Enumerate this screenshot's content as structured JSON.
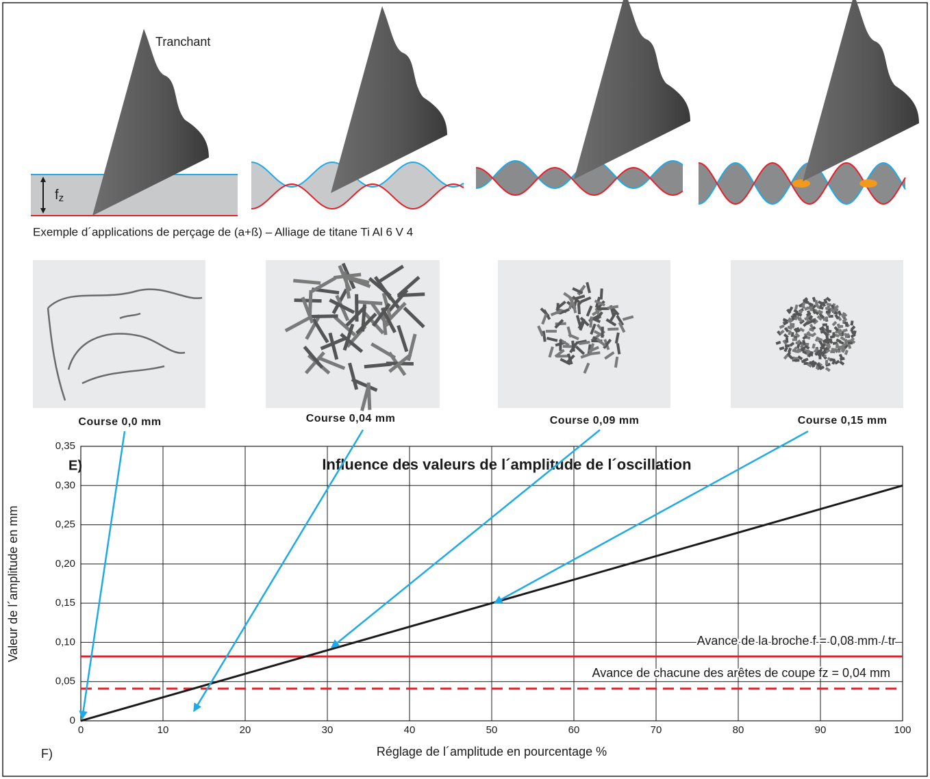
{
  "diagram": {
    "tool_label": "Tranchant",
    "fz_main": "f",
    "fz_sub": "z",
    "caption": "Exemple d´applications de perçage de (a+ß) – Alliage de titane Ti Al 6 V 4"
  },
  "photos": {
    "captions": [
      "Course 0,0 mm",
      "Course 0,04 mm",
      "Course 0,09 mm",
      "Course 0,15 mm"
    ]
  },
  "chart_data": {
    "type": "line",
    "panel_label": "E)",
    "footnote": "F)",
    "title": "Influence des valeurs de l´amplitude de l´oscillation",
    "x_label": "Réglage de l´amplitude en pourcentage %",
    "y_label": "Valeur de l´amplitude en mm",
    "x": [
      0,
      100
    ],
    "values": [
      0,
      0.3
    ],
    "color": "#1a1a1a",
    "xlim": [
      0,
      100
    ],
    "ylim": [
      0,
      0.35
    ],
    "xticks": [
      0,
      10,
      20,
      30,
      40,
      50,
      60,
      70,
      80,
      90,
      100
    ],
    "yticks": [
      0,
      {
        "value": 0.05,
        "label": "0,05"
      },
      {
        "value": 0.1,
        "label": "0,10"
      },
      {
        "value": 0.15,
        "label": "0,15"
      },
      {
        "value": 0.2,
        "label": "0,20"
      },
      {
        "value": 0.25,
        "label": "0,25"
      },
      {
        "value": 0.3,
        "label": "0,30"
      },
      {
        "value": 0.35,
        "label": "0,35"
      }
    ],
    "grid": true,
    "reference_lines": [
      {
        "value": 0.082,
        "label": "Avance de la broche f = 0,08 mm / tr",
        "color": "#e3202a",
        "dashed": false
      },
      {
        "value": 0.041,
        "label": "Avance de chacune des arêtes de coupe fz = 0,04 mm",
        "color": "#e3202a",
        "dashed": true
      }
    ]
  }
}
